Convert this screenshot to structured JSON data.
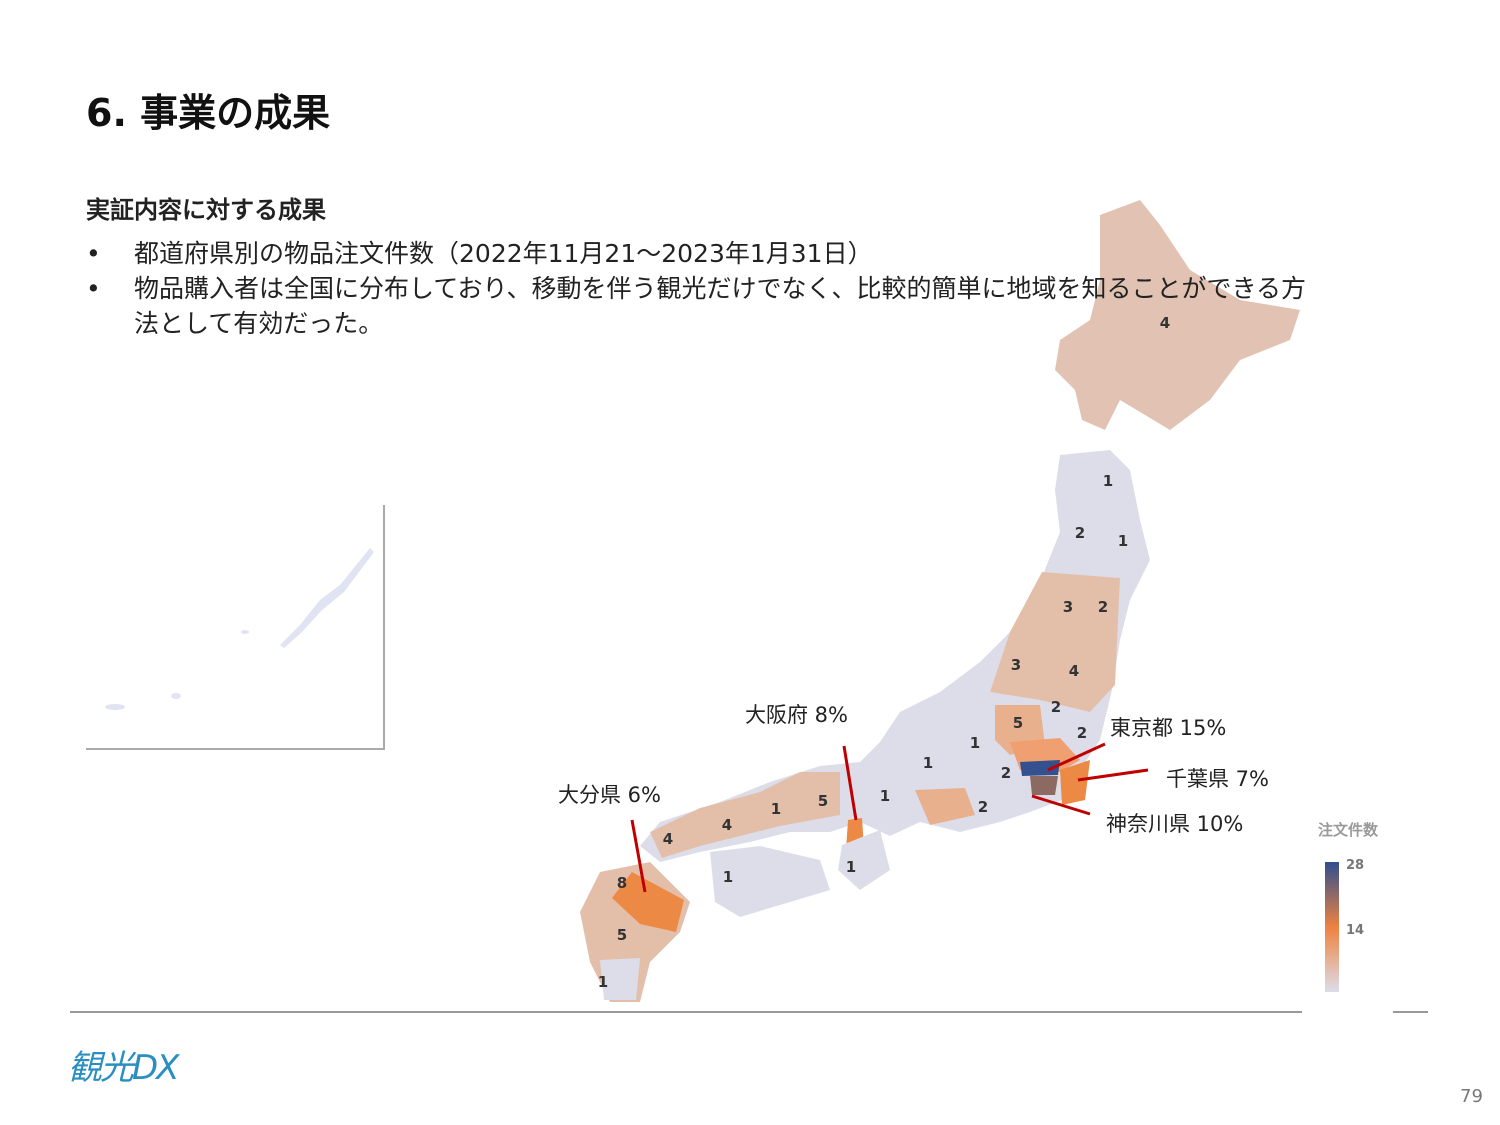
{
  "header": {
    "title": "6. 事業の成果",
    "subtitle": "実証内容に対する成果"
  },
  "bullets": [
    "都道府県別の物品注文件数（2022年11月21〜2023年1月31日）",
    "物品購入者は全国に分布しており、移動を伴う観光だけでなく、比較的簡単に地域を知ることができる方法として有効だった。"
  ],
  "map": {
    "region_counts": [
      4,
      1,
      2,
      1,
      3,
      2,
      3,
      4,
      2,
      5,
      2,
      1,
      1,
      2,
      2,
      1,
      5,
      1,
      4,
      4,
      1,
      1,
      8,
      5,
      1
    ],
    "callouts": [
      "大阪府 8%",
      "大分県 6%",
      "東京都 15%",
      "千葉県 7%",
      "神奈川県 10%"
    ],
    "legend": {
      "title": "注文件数",
      "ticks": [
        28,
        14
      ]
    }
  },
  "footer": {
    "logo": "観光DX",
    "page": "79"
  }
}
